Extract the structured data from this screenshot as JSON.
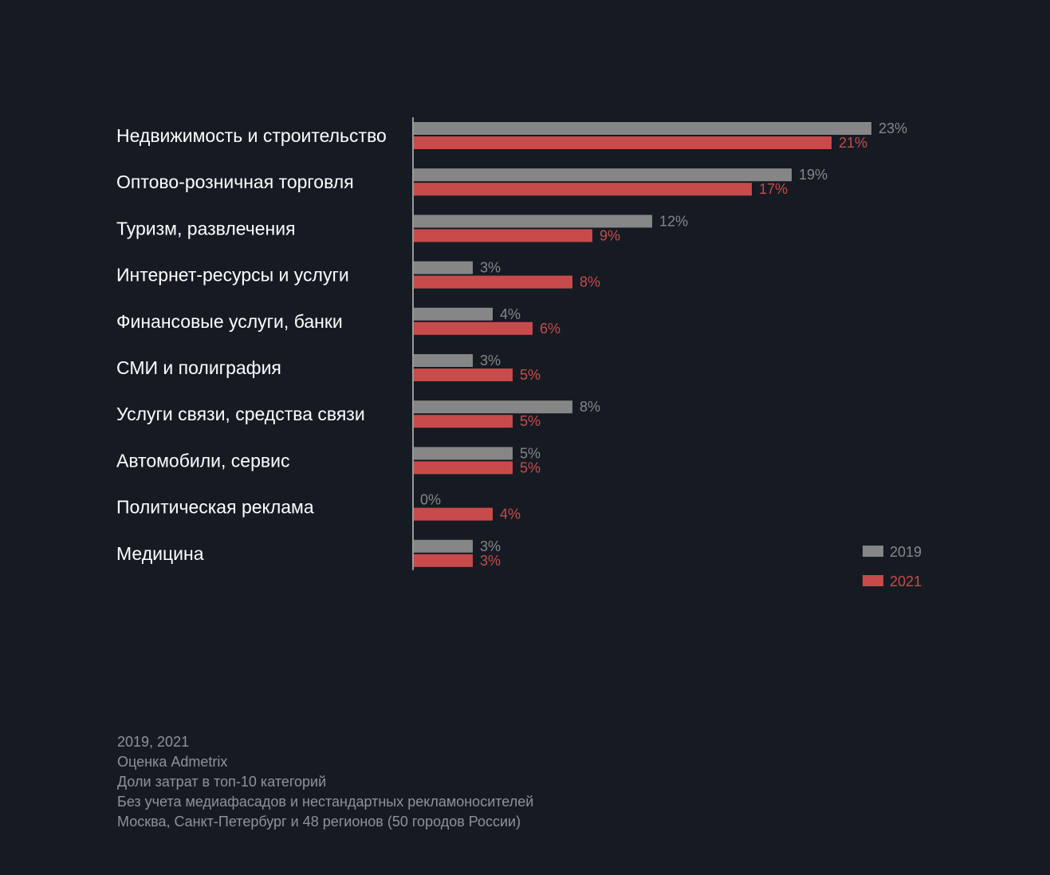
{
  "chart_data": {
    "type": "bar",
    "orientation": "horizontal",
    "categories": [
      "Недвижимость и строительство",
      "Оптово-розничная торговля",
      "Туризм, развлечения",
      "Интернет-ресурсы и услуги",
      "Финансовые услуги, банки",
      "СМИ и полиграфия",
      "Услуги связи, средства связи",
      "Автомобили, сервис",
      "Политическая реклама",
      "Медицина"
    ],
    "series": [
      {
        "name": "2019",
        "color": "#868686",
        "values": [
          23,
          19,
          12,
          3,
          4,
          3,
          8,
          5,
          0,
          3
        ],
        "labels": [
          "23%",
          "19%",
          "12%",
          "3%",
          "4%",
          "3%",
          "8%",
          "5%",
          "0%",
          "3%"
        ]
      },
      {
        "name": "2021",
        "color": "#c74b4b",
        "values": [
          21,
          17,
          9,
          8,
          6,
          5,
          5,
          5,
          4,
          3
        ],
        "labels": [
          "21%",
          "17%",
          "9%",
          "8%",
          "6%",
          "5%",
          "5%",
          "5%",
          "4%",
          "3%"
        ]
      }
    ],
    "value_unit": "%",
    "legend_position": "bottom-right",
    "grid": false,
    "axis_color": "#9a9a9a"
  },
  "notes": [
    "2019, 2021",
    "Оценка Admetrix",
    "Доли затрат в топ-10 категорий",
    "Без учета медиафасадов и нестандартных рекламоносителей",
    "Москва, Санкт-Петербург и 48 регионов (50 городов России)"
  ]
}
